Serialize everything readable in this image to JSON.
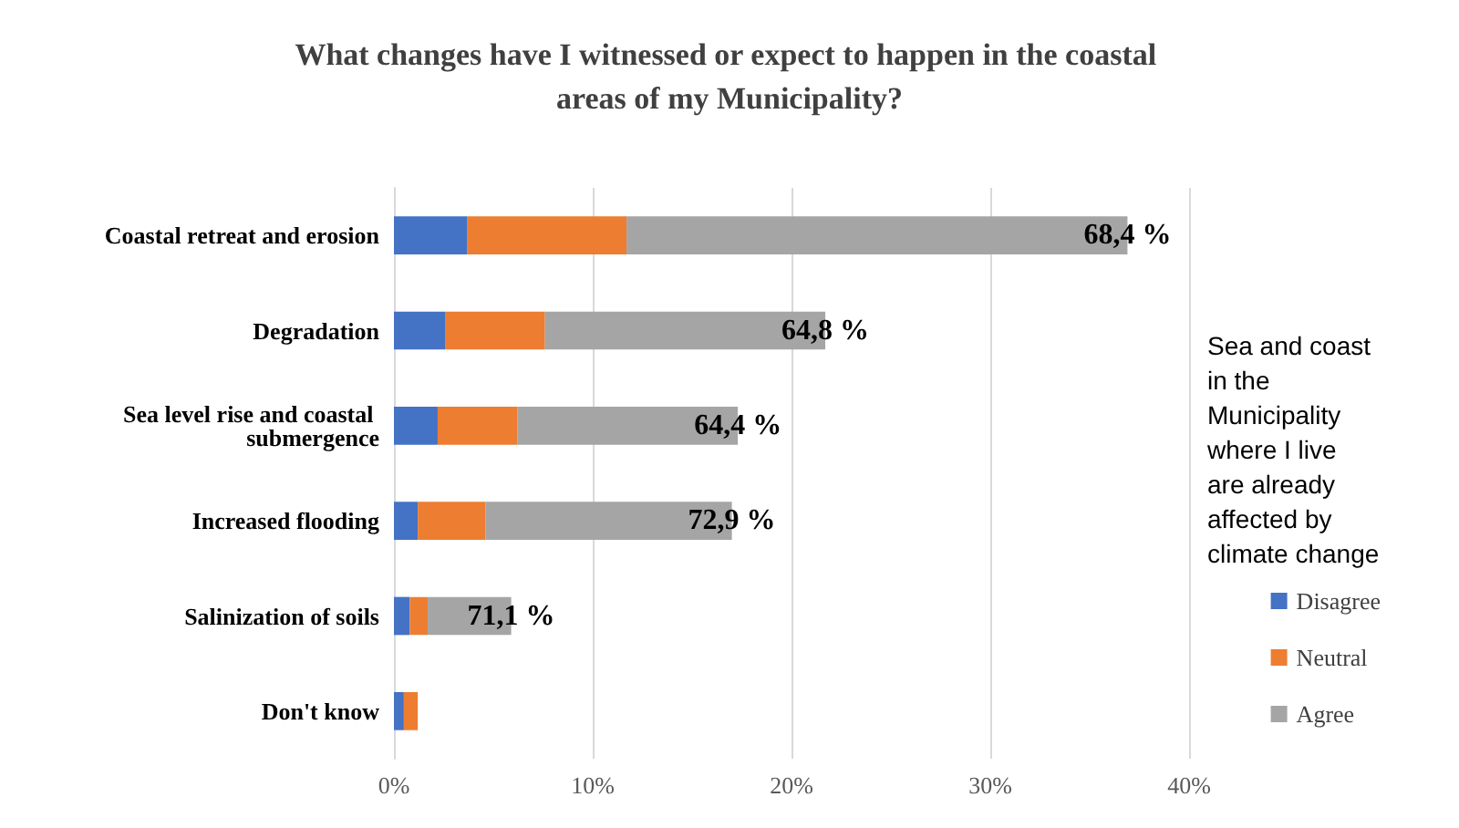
{
  "chart_data": {
    "type": "bar",
    "orientation": "horizontal",
    "stacked": true,
    "title": "What changes have I witnessed or expect to happen in the coastal areas of my Municipality?",
    "categories": [
      "Coastal retreat and erosion",
      "Degradation",
      "Sea level rise and coastal submergence",
      "Increased flooding",
      "Salinization of soils",
      "Don't know"
    ],
    "series": [
      {
        "name": "Disagree",
        "color": "#4472c4",
        "values": [
          3.7,
          2.6,
          2.2,
          1.2,
          0.8,
          0.5
        ]
      },
      {
        "name": "Neutral",
        "color": "#ed7d31",
        "values": [
          8.0,
          5.0,
          4.0,
          3.4,
          0.9,
          0.7
        ]
      },
      {
        "name": "Agree",
        "color": "#a5a5a5",
        "values": [
          25.2,
          14.1,
          11.1,
          12.4,
          4.2,
          0
        ]
      }
    ],
    "xlim": [
      0,
      40
    ],
    "xticks": [
      {
        "value": 0,
        "label": "0%"
      },
      {
        "value": 10,
        "label": "10%"
      },
      {
        "value": 20,
        "label": "20%"
      },
      {
        "value": 30,
        "label": "30%"
      },
      {
        "value": 40,
        "label": "40%"
      }
    ],
    "grid": "x",
    "legend": "right",
    "annotations": [
      "Sea and coast in the Municipality where I live are already affected by climate change",
      {
        "text": "68,4 %",
        "x": 36.9,
        "y": "Coastal retreat and erosion"
      },
      {
        "text": "64,8 %",
        "x": 21.7,
        "y": "Degradation"
      },
      {
        "text": "64,4 %",
        "x": 17.3,
        "y": "Sea level rise and coastal submergence"
      },
      {
        "text": "72,9 %",
        "x": 17,
        "y": "Increased flooding"
      },
      {
        "text": "71,1 %",
        "x": 5.9,
        "y": "Salinization of soils"
      }
    ]
  }
}
